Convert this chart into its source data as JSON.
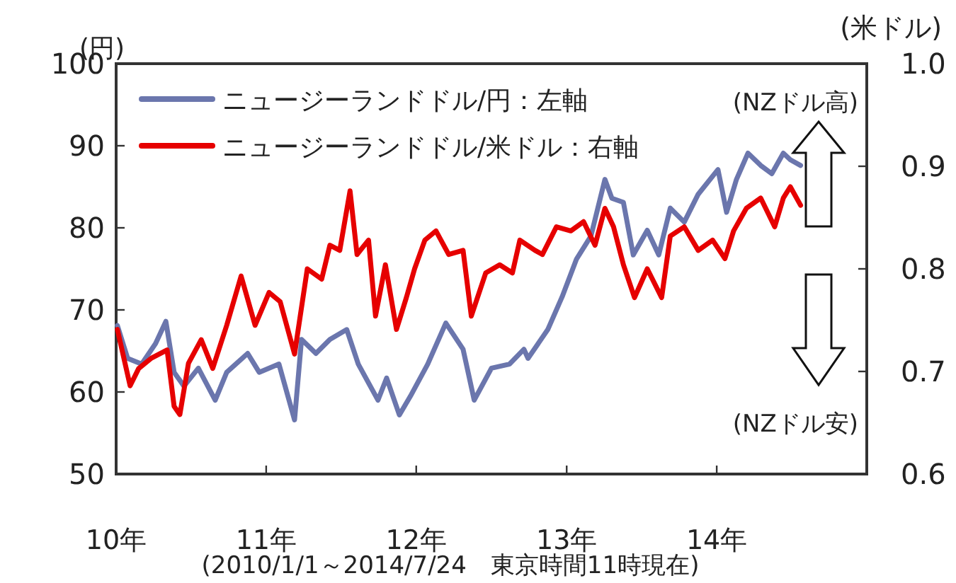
{
  "chart_data": {
    "type": "line",
    "ylabel": "(円)",
    "y2label": "(米ドル)",
    "legend": "top left",
    "line_style": "solid",
    "xlim": [
      "2010-01-01",
      "2015-01-01"
    ],
    "xticks": [
      {
        "value": "2010-01-01",
        "label": "10年"
      },
      {
        "value": "2011-01-01",
        "label": "11年"
      },
      {
        "value": "2012-01-01",
        "label": "12年"
      },
      {
        "value": "2013-01-01",
        "label": "13年"
      },
      {
        "value": "2014-01-01",
        "label": "14年"
      }
    ],
    "ylim": [
      50,
      100
    ],
    "yticks": [
      50,
      60,
      70,
      80,
      90,
      100
    ],
    "y2lim": [
      0.6,
      1.0
    ],
    "y2ticks": [
      {
        "value": 0.6,
        "label": "0.6"
      },
      {
        "value": 0.7,
        "label": "0.7"
      },
      {
        "value": 0.8,
        "label": "0.8"
      },
      {
        "value": 0.9,
        "label": "0.9"
      },
      {
        "value": 1.0,
        "label": "1.0"
      }
    ],
    "annotations": [
      "(NZドル高)",
      "(NZドル安)",
      "(2010/1/1～2014/7/24　東京時間11時現在)"
    ],
    "series": [
      {
        "name": "ニュージーランドドル/円：左軸",
        "color": "#6b76ad",
        "x": [
          "2010-01-04",
          "2010-01-29",
          "2010-03-04",
          "2010-04-07",
          "2010-05-02",
          "2010-05-22",
          "2010-06-15",
          "2010-07-20",
          "2010-08-30",
          "2010-09-27",
          "2010-11-17",
          "2010-12-15",
          "2011-02-01",
          "2011-03-11",
          "2011-03-28",
          "2011-05-02",
          "2011-06-05",
          "2011-07-16",
          "2011-08-13",
          "2011-09-30",
          "2011-10-21",
          "2011-11-21",
          "2011-12-18",
          "2012-01-29",
          "2012-03-13",
          "2012-04-24",
          "2012-05-21",
          "2012-07-02",
          "2012-08-15",
          "2012-09-19",
          "2012-09-29",
          "2012-11-16",
          "2012-12-21",
          "2013-01-25",
          "2013-03-01",
          "2013-04-04",
          "2013-04-21",
          "2013-05-19",
          "2013-06-12",
          "2013-07-16",
          "2013-08-13",
          "2013-09-10",
          "2013-10-14",
          "2013-11-17",
          "2014-01-04",
          "2014-01-25",
          "2014-02-18",
          "2014-03-18",
          "2014-04-18",
          "2014-05-15",
          "2014-06-12",
          "2014-06-29",
          "2014-07-24"
        ],
        "values": [
          68.1,
          64.1,
          63.4,
          65.9,
          68.6,
          62.4,
          60.7,
          62.9,
          59,
          62.4,
          64.7,
          62.4,
          63.4,
          56.6,
          66.4,
          64.7,
          66.4,
          67.6,
          63.4,
          59,
          61.7,
          57.2,
          59.5,
          63.4,
          68.4,
          65.2,
          59,
          62.9,
          63.4,
          65.2,
          64.1,
          67.6,
          71.6,
          76.2,
          79,
          85.9,
          83.6,
          83.1,
          76.7,
          79.7,
          76.7,
          82.4,
          80.7,
          84.1,
          87.1,
          81.9,
          85.9,
          89.1,
          87.6,
          86.6,
          89.1,
          88.3,
          87.6
        ]
      },
      {
        "name": "ニュージーランドドル/米ドル：右軸",
        "color": "#e60000",
        "axis": "y2",
        "x": [
          "2010-01-04",
          "2010-02-04",
          "2010-02-25",
          "2010-03-28",
          "2010-05-05",
          "2010-05-22",
          "2010-06-05",
          "2010-06-26",
          "2010-07-27",
          "2010-08-24",
          "2010-09-27",
          "2010-11-01",
          "2010-12-05",
          "2011-01-08",
          "2011-02-04",
          "2011-03-11",
          "2011-04-11",
          "2011-05-16",
          "2011-06-05",
          "2011-06-29",
          "2011-07-24",
          "2011-08-10",
          "2011-09-07",
          "2011-09-24",
          "2011-10-18",
          "2011-11-14",
          "2011-12-08",
          "2011-12-28",
          "2012-01-22",
          "2012-02-18",
          "2012-03-20",
          "2012-04-24",
          "2012-05-14",
          "2012-06-18",
          "2012-07-22",
          "2012-08-22",
          "2012-09-09",
          "2012-10-16",
          "2012-11-03",
          "2012-12-07",
          "2013-01-11",
          "2013-02-11",
          "2013-03-11",
          "2013-04-04",
          "2013-04-25",
          "2013-05-19",
          "2013-06-15",
          "2013-07-16",
          "2013-08-20",
          "2013-09-10",
          "2013-10-14",
          "2013-11-17",
          "2013-12-22",
          "2014-01-21",
          "2014-02-11",
          "2014-03-14",
          "2014-04-18",
          "2014-05-22",
          "2014-06-12",
          "2014-06-29",
          "2014-07-24"
        ],
        "values": [
          0.741,
          0.686,
          0.703,
          0.713,
          0.721,
          0.666,
          0.658,
          0.708,
          0.731,
          0.703,
          0.745,
          0.793,
          0.745,
          0.777,
          0.768,
          0.717,
          0.8,
          0.79,
          0.823,
          0.818,
          0.876,
          0.814,
          0.828,
          0.754,
          0.804,
          0.741,
          0.772,
          0.8,
          0.828,
          0.837,
          0.814,
          0.818,
          0.754,
          0.796,
          0.804,
          0.796,
          0.828,
          0.818,
          0.814,
          0.841,
          0.837,
          0.846,
          0.823,
          0.859,
          0.841,
          0.804,
          0.772,
          0.8,
          0.772,
          0.832,
          0.841,
          0.818,
          0.828,
          0.81,
          0.837,
          0.859,
          0.869,
          0.841,
          0.869,
          0.88,
          0.862
        ]
      }
    ]
  }
}
